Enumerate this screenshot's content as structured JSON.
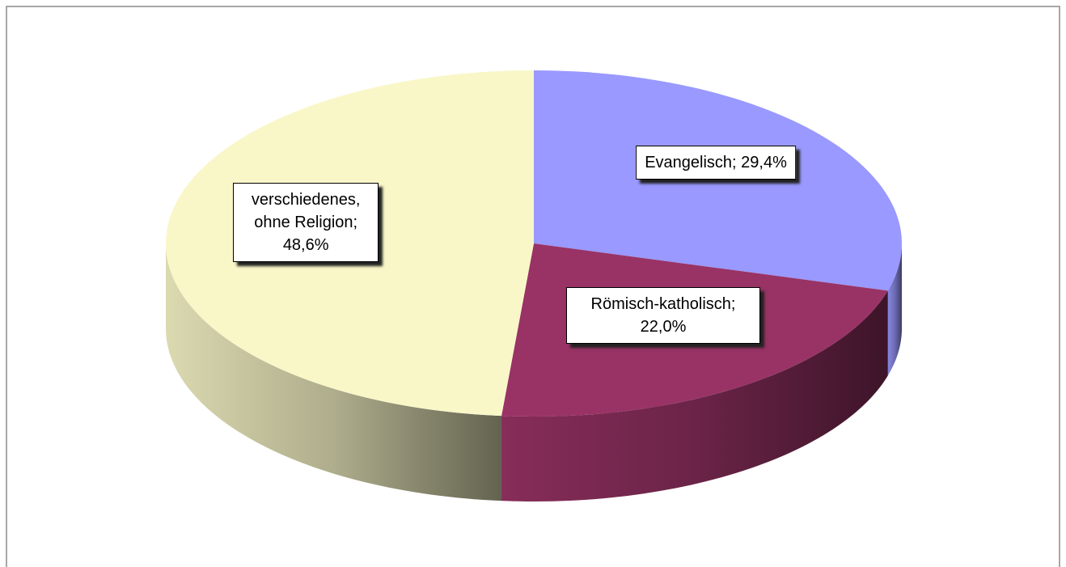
{
  "chart_data": {
    "type": "pie",
    "categories": [
      "Evangelisch",
      "Römisch-katholisch",
      "verschiedenes, ohne Religion"
    ],
    "values": [
      29.4,
      22.0,
      48.6
    ],
    "value_labels": [
      "29,4%",
      "22,0%",
      "48,6%"
    ],
    "label_separator": "; ",
    "colors": [
      "#9999ff",
      "#993366",
      "#f9f7c8"
    ],
    "start_angle": 0,
    "direction": "clockwise",
    "three_d": true
  }
}
